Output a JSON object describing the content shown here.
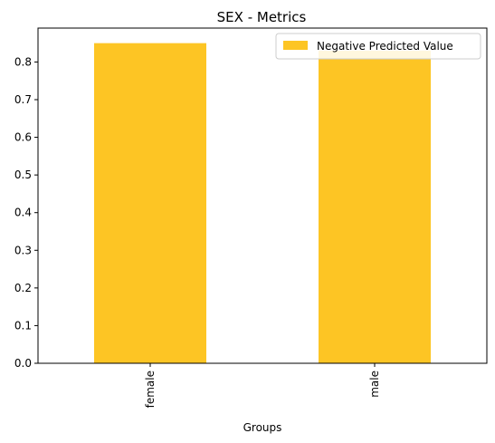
{
  "chart_data": {
    "type": "bar",
    "title": "SEX - Metrics",
    "xlabel": "Groups",
    "ylabel": "",
    "categories": [
      "female",
      "male"
    ],
    "series": [
      {
        "name": "Negative Predicted Value",
        "values": [
          0.85,
          0.83
        ],
        "color": "#fdc524"
      }
    ],
    "ylim": [
      0,
      0.89
    ],
    "yticks": [
      "0.0",
      "0.1",
      "0.2",
      "0.3",
      "0.4",
      "0.5",
      "0.6",
      "0.7",
      "0.8"
    ],
    "grid": false,
    "legend_position": "top-right"
  }
}
